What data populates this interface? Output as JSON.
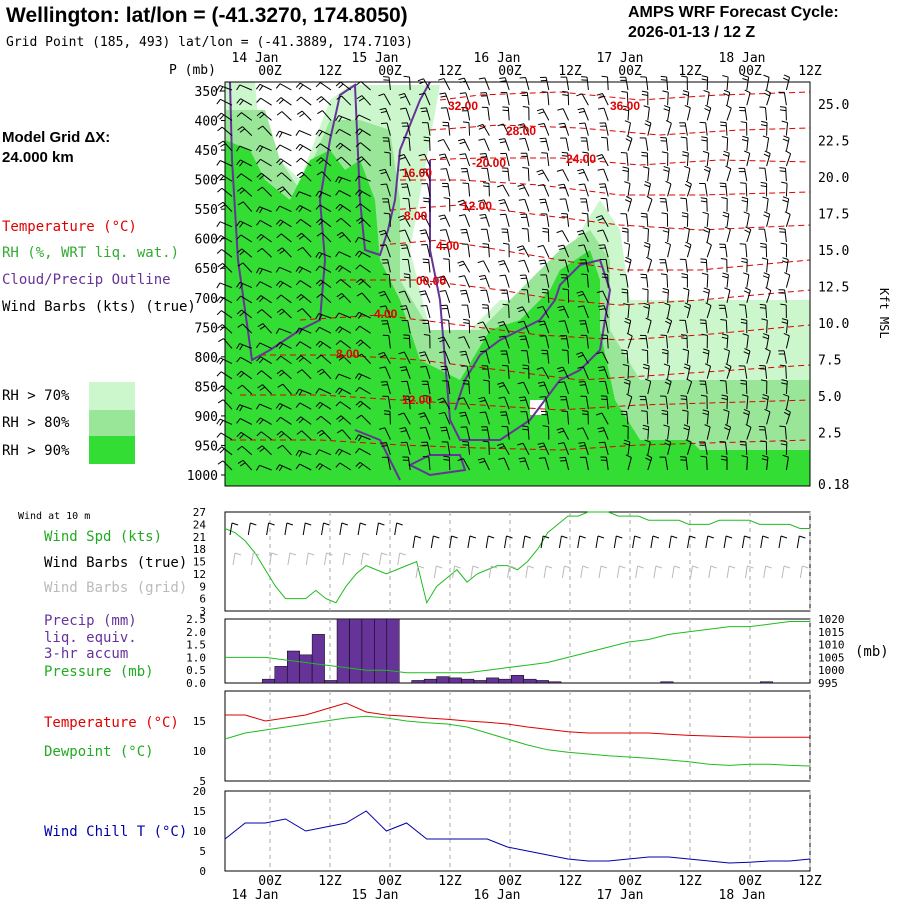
{
  "header": {
    "title": "Wellington:  lat/lon = (-41.3270, 174.8050)",
    "grid_point": "Grid Point (185, 493) lat/lon = (-41.3889, 174.7103)",
    "forecast_label": "AMPS WRF Forecast Cycle:",
    "forecast_cycle": "2026-01-13 / 12  Z",
    "model_grid_label": "Model Grid ΔX:",
    "model_grid_value": " 24.000 km"
  },
  "time_axis": {
    "top_ticks": [
      "00Z",
      "12Z",
      "00Z",
      "12Z",
      "00Z",
      "12Z",
      "00Z",
      "12Z",
      "00Z",
      "12Z"
    ],
    "date_labels": [
      "14 Jan",
      "15 Jan",
      "16 Jan",
      "17 Jan",
      "18 Jan"
    ]
  },
  "legend": {
    "temperature": "Temperature (°C)",
    "rh": "RH (%, WRT liq. wat.)",
    "cloud": "Cloud/Precip Outline",
    "wind": "Wind Barbs (kts) (true)",
    "rh70": "RH > 70%",
    "rh80": "RH > 80%",
    "rh90": "RH > 90%",
    "colors": {
      "rh70": "#ccf7cc",
      "rh80": "#99e699",
      "rh90": "#33cc33",
      "temperature": "#e00000",
      "cloud": "#663399",
      "wind": "#000000"
    }
  },
  "chart_data": [
    {
      "type": "heatmap",
      "title": "Time-height cross section",
      "ylabel": "P (mb)",
      "ylabel_right": "Kft MSL",
      "yticks": [
        350,
        400,
        450,
        500,
        550,
        600,
        650,
        700,
        750,
        800,
        850,
        900,
        950,
        1000
      ],
      "yticks_right": [
        "25.0",
        "22.5",
        "20.0",
        "17.5",
        "15.0",
        "12.5",
        "10.0",
        "7.5",
        "5.0",
        "2.5",
        "0.18"
      ],
      "temperature_contours": [
        "32.00",
        "36.00",
        "28.00",
        "-20.00",
        "24.00",
        "16.00",
        "12.00",
        "8.00",
        "4.00",
        "00.00",
        "4.00",
        "8.00",
        "12.00"
      ]
    },
    {
      "type": "line",
      "title": "Wind at 10 m",
      "labels": [
        "Wind Spd (kts)",
        "Wind Barbs (true)",
        "Wind Barbs (grid)"
      ],
      "yticks": [
        3,
        6,
        9,
        12,
        15,
        18,
        21,
        24,
        27
      ],
      "ylim": [
        3,
        27
      ],
      "series": [
        {
          "name": "Wind Spd (kts)",
          "x": [
            0,
            0.5,
            1,
            1.5,
            2,
            2.5,
            3,
            3.5,
            4,
            4.5,
            5,
            5.5,
            6,
            6.5,
            7,
            7.5,
            8,
            8.5,
            9,
            9.5,
            10,
            10.5,
            11,
            11.5,
            12,
            12.5,
            13,
            13.5,
            14,
            14.5,
            15,
            15.5,
            16,
            16.5,
            17,
            17.5,
            18,
            18.5,
            19,
            19.5,
            20,
            20.5,
            21,
            21.5,
            22,
            22.5,
            23,
            23.5,
            24,
            24.5,
            25,
            25.5,
            26,
            26.5,
            27,
            27.5,
            28,
            28.5,
            29
          ],
          "values": [
            23,
            22,
            20,
            17,
            13,
            9,
            6,
            6,
            6,
            8,
            6,
            5,
            9,
            12,
            14,
            13,
            12,
            13,
            14,
            15,
            5,
            9,
            11,
            13,
            10,
            12,
            13,
            14,
            14,
            13,
            15,
            18,
            22,
            24,
            26,
            26,
            27,
            27,
            27,
            26,
            26,
            26,
            25,
            25,
            25,
            25,
            24,
            24,
            24,
            25,
            25,
            25,
            25,
            24,
            24,
            24,
            24,
            23,
            23
          ]
        }
      ]
    },
    {
      "type": "bar",
      "title": "Precip / Pressure",
      "labels": [
        "Precip (mm)",
        "liq. equiv.",
        "3-hr accum",
        "Pressure (mb)"
      ],
      "yticks": [
        "2.5",
        "2.0",
        "1.5",
        "1.0",
        "0.5",
        "0.0"
      ],
      "ylim": [
        0,
        2.5
      ],
      "yticks_right": [
        1020,
        1015,
        1010,
        1005,
        1000,
        995
      ],
      "ylabel_right": "(mb)",
      "precip_values": [
        0,
        0,
        0,
        0.15,
        0.65,
        1.25,
        1.1,
        1.9,
        0.1,
        2.5,
        2.5,
        2.5,
        2.5,
        2.5,
        0,
        0.1,
        0.15,
        0.25,
        0.2,
        0.15,
        0.1,
        0.2,
        0.15,
        0.3,
        0.15,
        0.1,
        0.05,
        0,
        0,
        0,
        0,
        0,
        0,
        0,
        0,
        0.05,
        0,
        0,
        0,
        0,
        0,
        0,
        0,
        0.05,
        0,
        0,
        0
      ],
      "pressure": {
        "x": [
          0,
          1,
          2,
          3,
          4,
          5,
          6,
          7,
          8,
          9,
          10,
          11,
          12,
          13,
          14,
          15,
          16,
          17,
          18,
          19,
          20,
          21,
          22,
          23,
          24,
          25,
          26,
          27,
          28,
          29
        ],
        "values": [
          1005,
          1005,
          1005,
          1004,
          1003,
          1002,
          1001,
          1000,
          1000,
          999,
          999,
          999,
          999,
          1000,
          1001,
          1002,
          1003,
          1005,
          1007,
          1009,
          1011,
          1012,
          1014,
          1015,
          1016,
          1017,
          1017,
          1018,
          1019,
          1019
        ]
      }
    },
    {
      "type": "line",
      "title": "Temperature / Dewpoint",
      "labels": [
        "Temperature (°C)",
        "Dewpoint (°C)"
      ],
      "yticks": [
        5,
        10,
        15
      ],
      "ylim": [
        5,
        20
      ],
      "series": [
        {
          "name": "Temperature (°C)",
          "x": [
            0,
            1,
            2,
            3,
            4,
            5,
            6,
            7,
            8,
            9,
            10,
            11,
            12,
            13,
            14,
            15,
            16,
            17,
            18,
            19,
            20,
            21,
            22,
            23,
            24,
            25,
            26,
            27,
            28,
            29
          ],
          "values": [
            16,
            16,
            15,
            15.5,
            16,
            17,
            18,
            16.5,
            16,
            15.8,
            15.5,
            15.3,
            15,
            14.8,
            14.5,
            14,
            13.6,
            13.2,
            13,
            13,
            13,
            13,
            12.8,
            12.6,
            12.5,
            12.4,
            12.3,
            12.3,
            12.3,
            12.3
          ]
        },
        {
          "name": "Dewpoint (°C)",
          "x": [
            0,
            1,
            2,
            3,
            4,
            5,
            6,
            7,
            8,
            9,
            10,
            11,
            12,
            13,
            14,
            15,
            16,
            17,
            18,
            19,
            20,
            21,
            22,
            23,
            24,
            25,
            26,
            27,
            28,
            29
          ],
          "values": [
            12,
            13,
            13.5,
            14,
            14.5,
            15,
            15.5,
            15.8,
            15.5,
            15,
            14.7,
            14.5,
            14,
            13,
            12,
            11,
            10.2,
            9.8,
            9.5,
            9.2,
            9,
            8.8,
            8.5,
            8.2,
            7.8,
            7.6,
            7.8,
            7.8,
            7.6,
            7.5
          ]
        }
      ]
    },
    {
      "type": "line",
      "title": "Wind Chill",
      "labels": [
        "Wind Chill T (°C)"
      ],
      "yticks": [
        0,
        5,
        10,
        15,
        20
      ],
      "ylim": [
        0,
        20
      ],
      "series": [
        {
          "name": "Wind Chill T (°C)",
          "x": [
            0,
            1,
            2,
            3,
            4,
            5,
            6,
            7,
            8,
            9,
            10,
            11,
            12,
            13,
            14,
            15,
            16,
            17,
            18,
            19,
            20,
            21,
            22,
            23,
            24,
            25,
            26,
            27,
            28,
            29
          ],
          "values": [
            8,
            12,
            12,
            13,
            10,
            11,
            12,
            15,
            10,
            12,
            8,
            8,
            8,
            8,
            6,
            5,
            4,
            3,
            2.5,
            2.5,
            3,
            3.5,
            3.5,
            3,
            2.5,
            2,
            2.2,
            2.5,
            2.5,
            3
          ]
        }
      ]
    }
  ],
  "wind_panel_header": "Wind at 10 m"
}
